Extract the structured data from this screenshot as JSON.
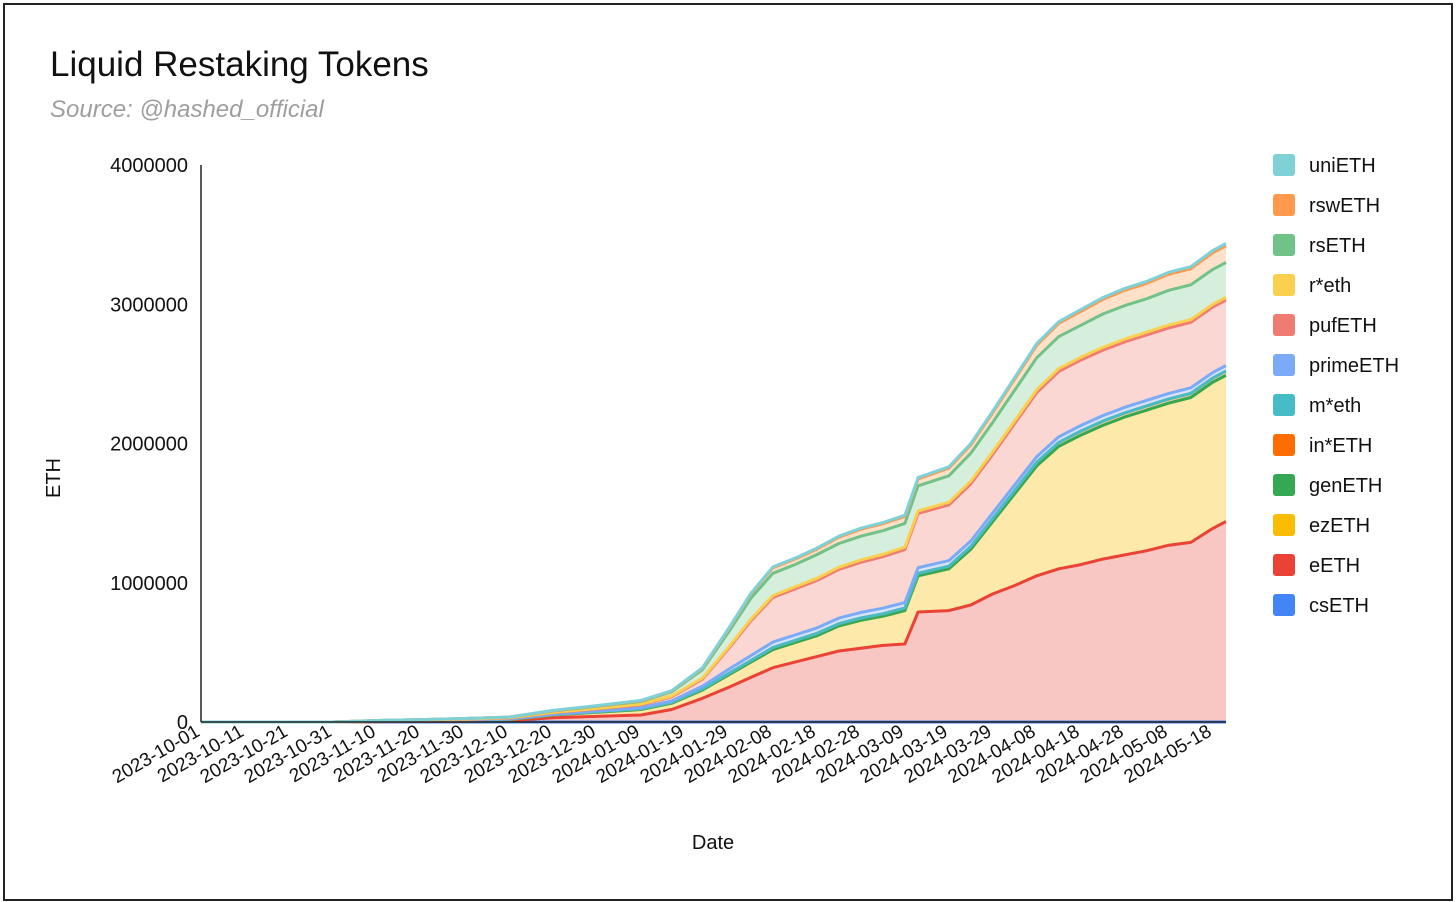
{
  "chart_data": {
    "type": "area",
    "stacked": true,
    "title": "Liquid Restaking Tokens",
    "subtitle": "Source: @hashed_official",
    "xlabel": "Date",
    "ylabel": "ETH",
    "ylim": [
      0,
      4000000
    ],
    "yticks": [
      0,
      1000000,
      2000000,
      3000000,
      4000000
    ],
    "ytick_labels": [
      "0",
      "1000000",
      "2000000",
      "3000000",
      "4000000"
    ],
    "xtick_labels": [
      "2023-10-01",
      "2023-10-11",
      "2023-10-21",
      "2023-10-31",
      "2023-11-10",
      "2023-11-20",
      "2023-11-30",
      "2023-12-10",
      "2023-12-20",
      "2023-12-30",
      "2024-01-09",
      "2024-01-19",
      "2024-01-29",
      "2024-02-08",
      "2024-02-18",
      "2024-02-28",
      "2024-03-09",
      "2024-03-19",
      "2024-03-29",
      "2024-04-08",
      "2024-04-18",
      "2024-04-28",
      "2024-05-08",
      "2024-05-18"
    ],
    "x": [
      "2023-10-01",
      "2023-10-11",
      "2023-10-21",
      "2023-10-31",
      "2023-11-10",
      "2023-11-20",
      "2023-11-30",
      "2023-12-10",
      "2023-12-20",
      "2023-12-30",
      "2024-01-09",
      "2024-01-16",
      "2024-01-23",
      "2024-01-29",
      "2024-02-03",
      "2024-02-08",
      "2024-02-13",
      "2024-02-18",
      "2024-02-23",
      "2024-02-28",
      "2024-03-04",
      "2024-03-09",
      "2024-03-12",
      "2024-03-19",
      "2024-03-24",
      "2024-03-29",
      "2024-04-03",
      "2024-04-08",
      "2024-04-13",
      "2024-04-18",
      "2024-04-23",
      "2024-04-28",
      "2024-05-03",
      "2024-05-08",
      "2024-05-13",
      "2024-05-18",
      "2024-05-21"
    ],
    "grid": false,
    "legend_position": "right",
    "series": [
      {
        "name": "csETH",
        "color": "#4285f4",
        "fill": "#c6dafc",
        "values": [
          0,
          0,
          0,
          0,
          0,
          0,
          0,
          0,
          0,
          0,
          0,
          0,
          0,
          0,
          0,
          0,
          0,
          0,
          0,
          0,
          0,
          0,
          0,
          0,
          0,
          0,
          0,
          0,
          0,
          0,
          0,
          0,
          0,
          0,
          0,
          0,
          0
        ]
      },
      {
        "name": "eETH",
        "color": "#ea4335",
        "fill": "#f8c6c3",
        "values": [
          0,
          0,
          0,
          0,
          2000,
          4000,
          6000,
          10000,
          30000,
          40000,
          50000,
          90000,
          170000,
          250000,
          320000,
          390000,
          430000,
          470000,
          510000,
          530000,
          550000,
          560000,
          790000,
          800000,
          840000,
          920000,
          980000,
          1050000,
          1100000,
          1130000,
          1170000,
          1200000,
          1230000,
          1270000,
          1290000,
          1390000,
          1440000
        ]
      },
      {
        "name": "ezETH",
        "color": "#fbbc04",
        "fill": "#fde9a9",
        "values": [
          0,
          0,
          0,
          0,
          2000,
          3000,
          5000,
          7000,
          20000,
          30000,
          40000,
          45000,
          60000,
          90000,
          110000,
          130000,
          140000,
          150000,
          180000,
          200000,
          210000,
          240000,
          260000,
          300000,
          400000,
          520000,
          660000,
          790000,
          880000,
          930000,
          960000,
          990000,
          1010000,
          1020000,
          1040000,
          1050000,
          1050000
        ]
      },
      {
        "name": "genETH",
        "color": "#34a853",
        "fill": "#bfe3c8",
        "values": [
          0,
          0,
          0,
          0,
          0,
          0,
          0,
          0,
          0,
          0,
          0,
          0,
          0,
          0,
          0,
          0,
          0,
          0,
          0,
          0,
          0,
          0,
          0,
          0,
          0,
          0,
          0,
          0,
          0,
          0,
          0,
          0,
          0,
          0,
          0,
          0,
          0
        ]
      },
      {
        "name": "in*ETH",
        "color": "#ff6d01",
        "fill": "#ffd0ad",
        "values": [
          0,
          0,
          0,
          0,
          1000,
          1500,
          2000,
          2500,
          3000,
          4000,
          5000,
          6000,
          8000,
          10000,
          12000,
          14000,
          15000,
          16000,
          16000,
          17000,
          17000,
          18000,
          18000,
          19000,
          20000,
          22000,
          24000,
          26000,
          28000,
          29000,
          30000,
          30000,
          30000,
          30000,
          30000,
          30000,
          30000
        ]
      },
      {
        "name": "m*eth",
        "color": "#46bdc6",
        "fill": "#c3ebee",
        "values": [
          0,
          0,
          0,
          0,
          0,
          0,
          0,
          0,
          0,
          0,
          0,
          0,
          0,
          0,
          0,
          0,
          0,
          0,
          0,
          0,
          0,
          0,
          0,
          0,
          0,
          0,
          0,
          0,
          0,
          0,
          0,
          0,
          0,
          0,
          0,
          0,
          0
        ]
      },
      {
        "name": "primeETH",
        "color": "#7baaf7",
        "fill": "#d5e4fc",
        "values": [
          0,
          0,
          0,
          0,
          1000,
          1500,
          2000,
          2500,
          3000,
          5000,
          8000,
          10000,
          20000,
          30000,
          35000,
          40000,
          40000,
          40000,
          40000,
          40000,
          40000,
          40000,
          40000,
          40000,
          40000,
          40000,
          40000,
          40000,
          40000,
          40000,
          40000,
          40000,
          40000,
          40000,
          40000,
          40000,
          40000
        ]
      },
      {
        "name": "pufETH",
        "color": "#f07b72",
        "fill": "#fbd7d4",
        "values": [
          0,
          0,
          0,
          0,
          2000,
          3000,
          4000,
          6000,
          10000,
          15000,
          20000,
          30000,
          50000,
          150000,
          250000,
          320000,
          330000,
          340000,
          350000,
          360000,
          370000,
          380000,
          390000,
          400000,
          410000,
          420000,
          440000,
          460000,
          470000,
          470000,
          470000,
          470000,
          470000,
          470000,
          470000,
          470000,
          470000
        ]
      },
      {
        "name": "r*eth",
        "color": "#fcd04f",
        "fill": "#feedba",
        "values": [
          0,
          0,
          0,
          0,
          1000,
          1500,
          2000,
          2500,
          3000,
          4000,
          5000,
          6000,
          8000,
          10000,
          12000,
          14000,
          15000,
          16000,
          16000,
          17000,
          17000,
          18000,
          18000,
          19000,
          20000,
          20000,
          20000,
          20000,
          20000,
          20000,
          20000,
          20000,
          20000,
          20000,
          20000,
          20000,
          20000
        ]
      },
      {
        "name": "rsETH",
        "color": "#71c287",
        "fill": "#d6efdc",
        "values": [
          0,
          0,
          0,
          0,
          2000,
          3000,
          4000,
          5000,
          10000,
          15000,
          20000,
          30000,
          60000,
          110000,
          150000,
          160000,
          160000,
          170000,
          170000,
          170000,
          170000,
          170000,
          180000,
          190000,
          200000,
          210000,
          220000,
          230000,
          230000,
          230000,
          240000,
          240000,
          240000,
          250000,
          250000,
          250000,
          250000
        ]
      },
      {
        "name": "rswETH",
        "color": "#ff994d",
        "fill": "#ffe0c8",
        "values": [
          0,
          0,
          0,
          0,
          0,
          0,
          0,
          0,
          2000,
          3000,
          4000,
          5000,
          10000,
          20000,
          30000,
          40000,
          40000,
          40000,
          45000,
          50000,
          50000,
          50000,
          50000,
          55000,
          60000,
          70000,
          80000,
          90000,
          95000,
          100000,
          105000,
          110000,
          110000,
          115000,
          115000,
          120000,
          120000
        ]
      },
      {
        "name": "uniETH",
        "color": "#7ed1d7",
        "fill": "#dcf2f4",
        "values": [
          0,
          0,
          0,
          0,
          0,
          0,
          0,
          0,
          2000,
          2000,
          3000,
          3000,
          4000,
          5000,
          5000,
          6000,
          6000,
          7000,
          7000,
          8000,
          8000,
          9000,
          9000,
          10000,
          10000,
          11000,
          11000,
          12000,
          12000,
          13000,
          13000,
          14000,
          14000,
          15000,
          15000,
          16000,
          16000
        ]
      }
    ]
  }
}
